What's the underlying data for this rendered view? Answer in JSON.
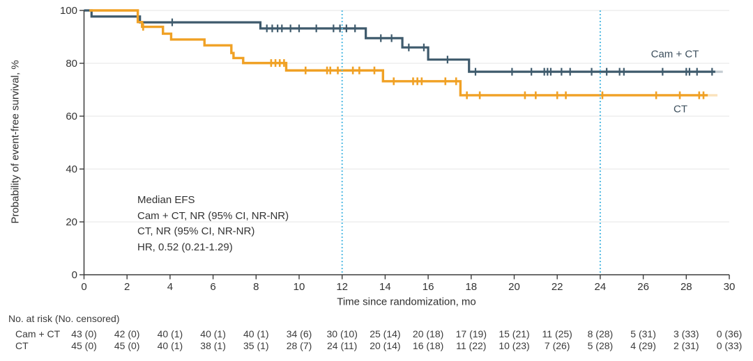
{
  "figure": {
    "ylabel": "Probability of event-free survival, %",
    "xlabel": "Time since randomization, mo",
    "annotation": {
      "lines": [
        "Median EFS",
        "Cam + CT, NR (95% CI, NR-NR)",
        "CT, NR (95% CI, NR-NR)",
        "HR, 0.52 (0.21-1.29)"
      ]
    }
  },
  "chart_data": {
    "type": "line",
    "subtype": "kaplan-meier-step",
    "title": "",
    "xlabel": "Time since randomization, mo",
    "ylabel": "Probability of event-free survival, %",
    "xlim": [
      0,
      30
    ],
    "ylim": [
      0,
      100
    ],
    "xticks": [
      0,
      2,
      4,
      6,
      8,
      10,
      12,
      14,
      16,
      18,
      20,
      22,
      24,
      26,
      28,
      30
    ],
    "yticks": [
      0,
      20,
      40,
      60,
      80,
      100
    ],
    "grid": "horizontal-light",
    "gridline_color": "#e9e9e9",
    "axis_color": "#3b3b3b",
    "tick_label_color": "#333333",
    "reference_lines_x": [
      12,
      24
    ],
    "reference_line_color": "#54bce4",
    "legend_position": "right-of-curves",
    "series": [
      {
        "name": "Cam + CT",
        "color": "#3e5a6c",
        "steps": [
          [
            0,
            100
          ],
          [
            0.35,
            97.7
          ],
          [
            2.6,
            95.5
          ],
          [
            8.2,
            93.2
          ],
          [
            13.1,
            89.5
          ],
          [
            14.8,
            86.0
          ],
          [
            16.0,
            81.4
          ],
          [
            17.9,
            76.8
          ]
        ],
        "draw_start": 0,
        "solid_end": 29.35,
        "faint_end": 29.7,
        "censor_times": [
          4.1,
          8.5,
          8.75,
          9.0,
          9.2,
          9.6,
          10.0,
          10.8,
          11.6,
          11.9,
          12.2,
          12.6,
          13.8,
          14.3,
          15.1,
          15.8,
          16.9,
          18.2,
          19.9,
          20.8,
          21.4,
          21.55,
          21.7,
          22.2,
          22.6,
          23.6,
          24.3,
          24.9,
          25.1,
          26.9,
          28.0,
          28.15,
          28.5,
          29.2
        ]
      },
      {
        "name": "CT",
        "color": "#f0a125",
        "steps": [
          [
            0,
            100
          ],
          [
            2.5,
            95.6
          ],
          [
            2.7,
            93.8
          ],
          [
            3.67,
            91.2
          ],
          [
            4.05,
            89.0
          ],
          [
            5.6,
            86.8
          ],
          [
            6.85,
            83.9
          ],
          [
            6.95,
            82.0
          ],
          [
            7.4,
            80.1
          ],
          [
            9.4,
            77.3
          ],
          [
            13.9,
            73.2
          ],
          [
            17.5,
            67.9
          ]
        ],
        "draw_start": 0.25,
        "solid_end": 29.0,
        "faint_end": 29.45,
        "censor_times": [
          2.75,
          8.7,
          8.9,
          9.1,
          9.3,
          10.3,
          11.3,
          11.45,
          11.8,
          12.5,
          12.8,
          13.5,
          14.4,
          15.3,
          15.5,
          15.7,
          16.8,
          17.3,
          17.8,
          18.4,
          20.5,
          21.0,
          22.0,
          22.4,
          24.1,
          26.6,
          27.7,
          28.6,
          28.8
        ]
      }
    ]
  },
  "risk_table": {
    "header": "No. at risk (No. censored)",
    "time_points": [
      0,
      2,
      4,
      6,
      8,
      10,
      12,
      14,
      16,
      18,
      20,
      22,
      24,
      26,
      28,
      30
    ],
    "rows": [
      {
        "label": "Cam + CT",
        "values": [
          "43 (0)",
          "42 (0)",
          "40 (1)",
          "40 (1)",
          "40 (1)",
          "34 (6)",
          "30 (10)",
          "25 (14)",
          "20 (18)",
          "17 (19)",
          "15 (21)",
          "11 (25)",
          "8 (28)",
          "5 (31)",
          "3 (33)",
          "0 (36)"
        ]
      },
      {
        "label": "CT",
        "values": [
          "45 (0)",
          "45 (0)",
          "40 (1)",
          "38 (1)",
          "35 (1)",
          "28 (7)",
          "24 (11)",
          "20 (14)",
          "16 (18)",
          "11 (22)",
          "10 (23)",
          "7 (26)",
          "5 (28)",
          "4 (29)",
          "2 (31)",
          "0 (33)"
        ]
      }
    ]
  }
}
